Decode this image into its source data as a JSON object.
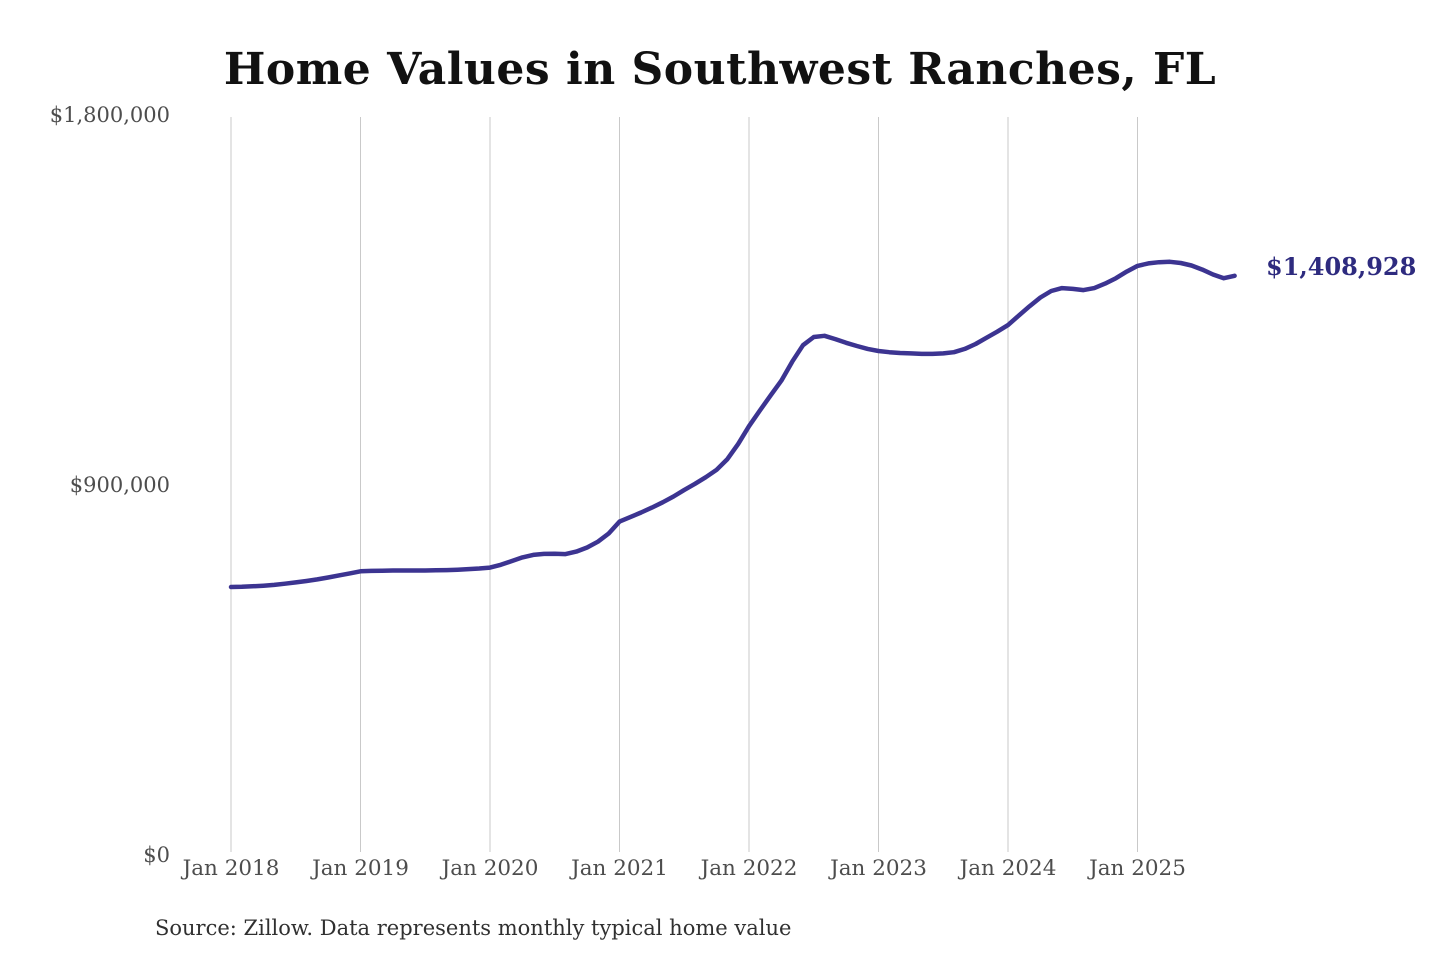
{
  "title": "Home Values in Southwest Ranches, FL",
  "end_label": "$1,408,928",
  "source_note": "Source: Zillow. Data represents monthly typical home value",
  "colors": {
    "line": "#3c3491",
    "end_label": "#2e2b7f",
    "grid": "#c9c9c9",
    "tick_text": "#4d4d4d",
    "title_text": "#111111",
    "source_text": "#303030",
    "background": "#ffffff"
  },
  "chart_data": {
    "type": "line",
    "title": "Home Values in Southwest Ranches, FL",
    "xlabel": "",
    "ylabel": "",
    "ylim": [
      0,
      1800000
    ],
    "grid": "vertical-only",
    "legend": "none",
    "start_month": "2018-01",
    "x_tick_labels": [
      "Jan 2018",
      "Jan 2019",
      "Jan 2020",
      "Jan 2021",
      "Jan 2022",
      "Jan 2023",
      "Jan 2024",
      "Jan 2025"
    ],
    "y_ticks": [
      {
        "value": 0,
        "label": "$0"
      },
      {
        "value": 900000,
        "label": "$900,000"
      },
      {
        "value": 1800000,
        "label": "$1,800,000"
      }
    ],
    "latest_value": 1408928,
    "series": [
      {
        "name": "Monthly typical home value",
        "values": [
          652000,
          652500,
          653500,
          655000,
          657000,
          660000,
          663000,
          666500,
          670500,
          675000,
          680000,
          685000,
          690000,
          691000,
          691500,
          692000,
          692000,
          692000,
          692000,
          692500,
          693000,
          694000,
          695500,
          697000,
          699000,
          706000,
          715000,
          724000,
          730000,
          732500,
          733000,
          732000,
          738000,
          748000,
          762000,
          782000,
          811000,
          822000,
          833000,
          845000,
          858000,
          872000,
          888000,
          903000,
          919000,
          937000,
          963000,
          1000000,
          1043000,
          1081000,
          1118000,
          1154000,
          1200000,
          1240000,
          1260000,
          1263000,
          1255000,
          1246000,
          1238000,
          1231000,
          1226000,
          1223000,
          1221000,
          1220000,
          1219000,
          1219000,
          1220000,
          1223000,
          1231000,
          1243000,
          1258000,
          1273000,
          1289000,
          1312000,
          1335000,
          1356000,
          1372000,
          1379000,
          1377000,
          1374000,
          1379000,
          1390000,
          1403000,
          1419000,
          1433000,
          1439000,
          1442000,
          1443000,
          1440000,
          1434000,
          1424000,
          1412000,
          1403000,
          1408928
        ]
      }
    ]
  }
}
